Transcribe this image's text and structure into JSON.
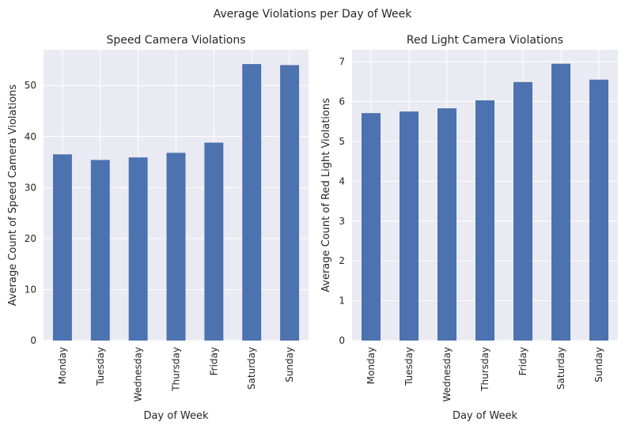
{
  "figure": {
    "suptitle": "Average Violations per Day of Week",
    "background": "#ffffff",
    "axes_facecolor": "#EAEAF2",
    "grid_color": "#ffffff",
    "bar_color": "#4C72B0"
  },
  "chart_data": [
    {
      "type": "bar",
      "title": "Speed Camera Violations",
      "xlabel": "Day of Week",
      "ylabel": "Average Count of Speed Camera Violations",
      "categories": [
        "Monday",
        "Tuesday",
        "Wednesday",
        "Thursday",
        "Friday",
        "Saturday",
        "Sunday"
      ],
      "values": [
        36.5,
        35.4,
        35.9,
        36.8,
        38.8,
        54.2,
        54.0
      ],
      "ylim": [
        0,
        57
      ],
      "yticks": [
        0,
        10,
        20,
        30,
        40,
        50
      ],
      "grid": true
    },
    {
      "type": "bar",
      "title": "Red Light Camera Violations",
      "xlabel": "Day of Week",
      "ylabel": "Average Count of Red Light Violations",
      "categories": [
        "Monday",
        "Tuesday",
        "Wednesday",
        "Thursday",
        "Friday",
        "Saturday",
        "Sunday"
      ],
      "values": [
        5.71,
        5.75,
        5.83,
        6.03,
        6.49,
        6.95,
        6.55
      ],
      "ylim": [
        0,
        7.3
      ],
      "yticks": [
        0,
        1,
        2,
        3,
        4,
        5,
        6,
        7
      ],
      "grid": true
    }
  ]
}
